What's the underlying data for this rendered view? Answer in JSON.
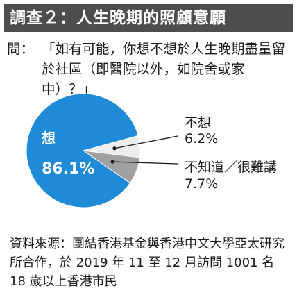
{
  "header": {
    "title": "調查２：人生晚期的照顧意願"
  },
  "question": {
    "label": "問：",
    "text": "「如有可能，你想不想於人生晚期盡量留於社區（即醫院以外，如院舍或家中）？」"
  },
  "chart_data": {
    "type": "pie",
    "slices": [
      {
        "label": "想",
        "value": 86.1,
        "value_label": "86.1%",
        "color": "#1f8ad6"
      },
      {
        "label": "不想",
        "value": 6.2,
        "value_label": "6.2%",
        "color": "#ededed"
      },
      {
        "label": "不知道／很難講",
        "value": 7.7,
        "value_label": "7.7%",
        "color": "#a0a0a0"
      }
    ]
  },
  "source": {
    "text": "資料來源：團結香港基金與香港中文大學亞太研究所合作，於 2019 年 11 至 12 月訪問 1001 名 18 歲以上香港市民"
  }
}
